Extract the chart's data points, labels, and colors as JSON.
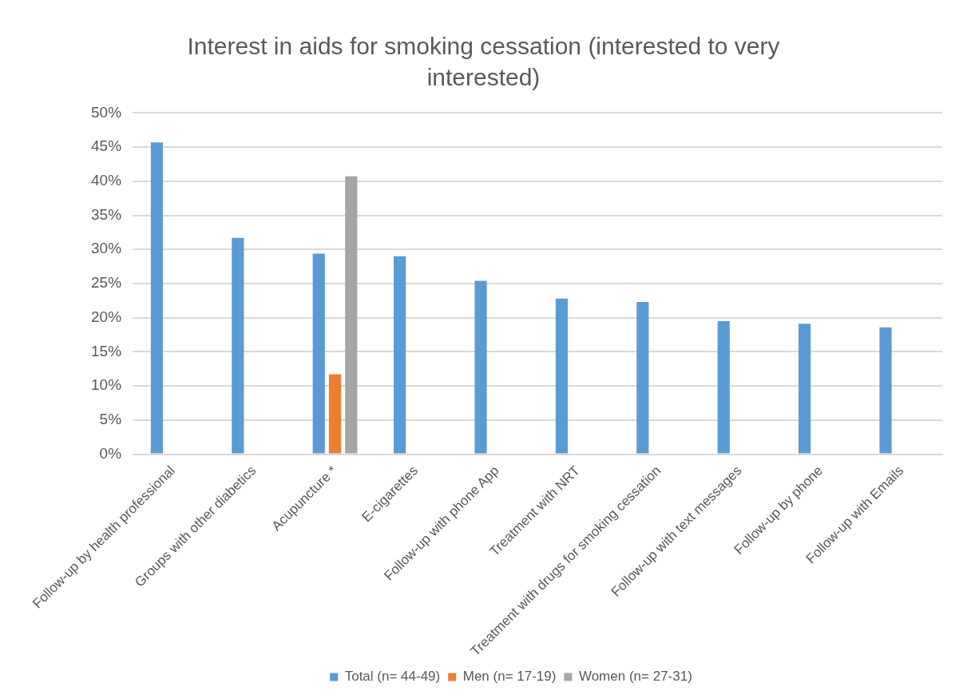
{
  "chart_data": {
    "type": "bar",
    "title": "Interest in aids for smoking cessation (interested to very interested)",
    "categories": [
      "Follow-up by health professional",
      "Groups with other diabetics",
      "Acupuncture *",
      "E-cigarettes",
      "Follow-up with phone App",
      "Treatment with NRT",
      "Treatment with drugs for smoking cessation",
      "Follow-up with text messages",
      "Follow-up by phone",
      "Follow-up with Emails"
    ],
    "series": [
      {
        "name": "Total (n= 44-49)",
        "color": "#5b9bd5",
        "values": [
          45.7,
          31.7,
          29.4,
          29.0,
          25.4,
          22.8,
          22.3,
          19.5,
          19.1,
          18.6
        ]
      },
      {
        "name": "Men (n= 17-19)",
        "color": "#ed7d31",
        "values": [
          null,
          null,
          11.7,
          null,
          null,
          null,
          null,
          null,
          null,
          null
        ]
      },
      {
        "name": "Women (n= 27-31)",
        "color": "#a5a5a5",
        "values": [
          null,
          null,
          40.7,
          null,
          null,
          null,
          null,
          null,
          null,
          null
        ]
      }
    ],
    "ylim": [
      0,
      50
    ],
    "yticks": [
      {
        "value": 0,
        "label": "0%"
      },
      {
        "value": 5,
        "label": "5%"
      },
      {
        "value": 10,
        "label": "10%"
      },
      {
        "value": 15,
        "label": "15%"
      },
      {
        "value": 20,
        "label": "20%"
      },
      {
        "value": 25,
        "label": "25%"
      },
      {
        "value": 30,
        "label": "30%"
      },
      {
        "value": 35,
        "label": "35%"
      },
      {
        "value": 40,
        "label": "40%"
      },
      {
        "value": 45,
        "label": "45%"
      },
      {
        "value": 50,
        "label": "50%"
      }
    ],
    "grid": "y",
    "legend": "bottom"
  }
}
